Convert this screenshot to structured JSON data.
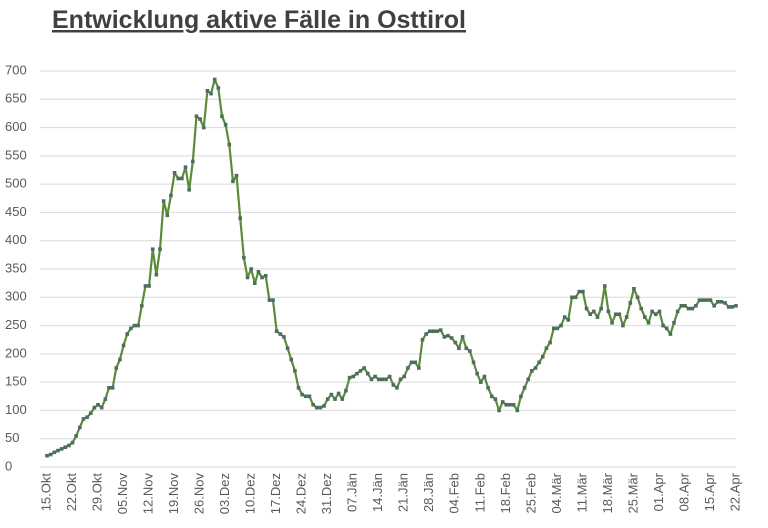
{
  "chart_data": {
    "type": "line",
    "title": "Entwicklung aktive Fälle in Osttirol",
    "categories": [
      "15.Okt",
      null,
      null,
      null,
      null,
      null,
      null,
      "22.Okt",
      null,
      null,
      null,
      null,
      null,
      null,
      "29.Okt",
      null,
      null,
      null,
      null,
      null,
      null,
      "05.Nov",
      null,
      null,
      null,
      null,
      null,
      null,
      "12.Nov",
      null,
      null,
      null,
      null,
      null,
      null,
      "19.Nov",
      null,
      null,
      null,
      null,
      null,
      null,
      "26.Nov",
      null,
      null,
      null,
      null,
      null,
      null,
      "03.Dez",
      null,
      null,
      null,
      null,
      null,
      null,
      "10.Dez",
      null,
      null,
      null,
      null,
      null,
      null,
      "17.Dez",
      null,
      null,
      null,
      null,
      null,
      null,
      "24.Dez",
      null,
      null,
      null,
      null,
      null,
      null,
      "31.Dez",
      null,
      null,
      null,
      null,
      null,
      null,
      "07.Jän",
      null,
      null,
      null,
      null,
      null,
      null,
      "14.Jän",
      null,
      null,
      null,
      null,
      null,
      null,
      "21.Jän",
      null,
      null,
      null,
      null,
      null,
      null,
      "28.Jän",
      null,
      null,
      null,
      null,
      null,
      null,
      "04.Feb",
      null,
      null,
      null,
      null,
      null,
      null,
      "11.Feb",
      null,
      null,
      null,
      null,
      null,
      null,
      "18.Feb",
      null,
      null,
      null,
      null,
      null,
      null,
      "25.Feb",
      null,
      null,
      null,
      null,
      null,
      null,
      "04.Mär",
      null,
      null,
      null,
      null,
      null,
      null,
      "11.Mär",
      null,
      null,
      null,
      null,
      null,
      null,
      "18.Mär",
      null,
      null,
      null,
      null,
      null,
      null,
      "25.Mär",
      null,
      null,
      null,
      null,
      null,
      null,
      "01.Apr",
      null,
      null,
      null,
      null,
      null,
      null,
      "08.Apr",
      null,
      null,
      null,
      null,
      null,
      null,
      "15.Apr",
      null,
      null,
      null,
      null,
      null,
      null,
      "22.Apr"
    ],
    "values": [
      20,
      22,
      26,
      29,
      32,
      35,
      38,
      43,
      55,
      70,
      85,
      88,
      95,
      105,
      110,
      105,
      120,
      140,
      140,
      175,
      190,
      215,
      235,
      245,
      250,
      250,
      285,
      320,
      320,
      385,
      340,
      385,
      470,
      445,
      480,
      520,
      510,
      510,
      530,
      490,
      540,
      620,
      615,
      600,
      665,
      660,
      685,
      670,
      620,
      605,
      570,
      505,
      515,
      440,
      370,
      335,
      350,
      325,
      345,
      335,
      338,
      295,
      295,
      240,
      235,
      230,
      210,
      190,
      170,
      140,
      128,
      125,
      125,
      110,
      105,
      105,
      108,
      120,
      128,
      120,
      130,
      120,
      135,
      158,
      160,
      165,
      170,
      175,
      165,
      155,
      160,
      155,
      155,
      155,
      160,
      145,
      140,
      155,
      160,
      175,
      185,
      185,
      175,
      225,
      235,
      240,
      240,
      240,
      242,
      230,
      232,
      228,
      220,
      210,
      230,
      210,
      205,
      185,
      165,
      150,
      160,
      140,
      125,
      120,
      100,
      115,
      110,
      110,
      110,
      100,
      125,
      140,
      155,
      170,
      175,
      185,
      195,
      210,
      220,
      245,
      245,
      250,
      265,
      260,
      300,
      300,
      310,
      310,
      280,
      270,
      275,
      265,
      280,
      320,
      275,
      255,
      270,
      270,
      250,
      265,
      290,
      315,
      300,
      280,
      265,
      255,
      275,
      270,
      275,
      250,
      245,
      235,
      255,
      275,
      285,
      285,
      280,
      280,
      285,
      295,
      295,
      295,
      295,
      285,
      292,
      292,
      290,
      283,
      283,
      285
    ],
    "color": "#5b8c3a",
    "marker_color": "#4d6e5e",
    "ylim": [
      0,
      700
    ],
    "yticks": [
      0,
      50,
      100,
      150,
      200,
      250,
      300,
      350,
      400,
      450,
      500,
      550,
      600,
      650,
      700
    ],
    "grid": true
  }
}
